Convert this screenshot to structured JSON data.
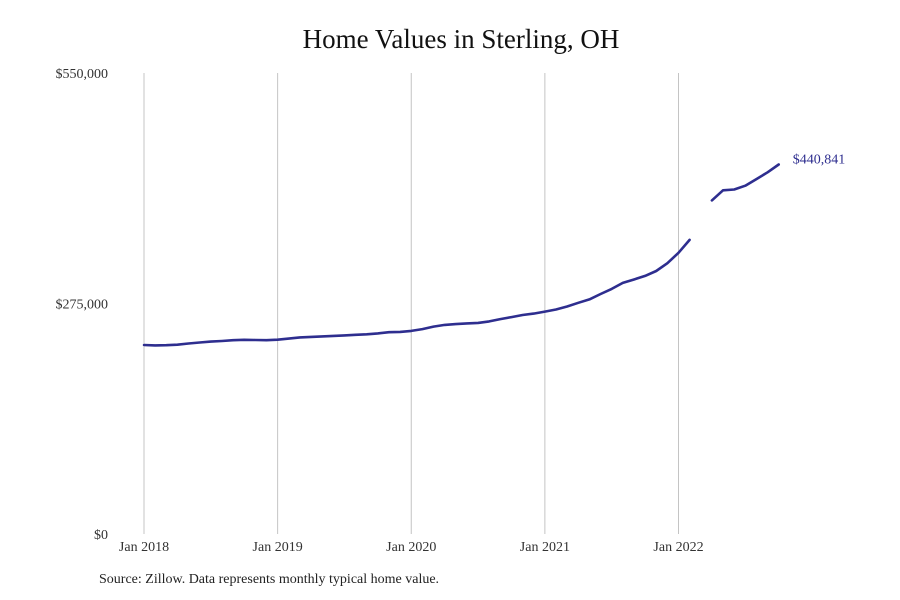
{
  "chart_data": {
    "type": "line",
    "title": "Home Values in Sterling, OH",
    "xlabel": "",
    "ylabel": "",
    "ylim": [
      0,
      550000
    ],
    "y_ticks": [
      "$0",
      "$275,000",
      "$550,000"
    ],
    "y_tick_values": [
      0,
      275000,
      550000
    ],
    "x_ticks": [
      "Jan 2018",
      "Jan 2019",
      "Jan 2020",
      "Jan 2021",
      "Jan 2022"
    ],
    "x_tick_values": [
      "2018-01",
      "2019-01",
      "2020-01",
      "2021-01",
      "2022-01"
    ],
    "xlim": [
      "2018-01",
      "2022-12"
    ],
    "grid": "vertical",
    "line_color": "#2e2e8f",
    "end_label": "$440,841",
    "series": [
      {
        "segments": [
          {
            "x": [
              "2018-01",
              "2018-02",
              "2018-03",
              "2018-04",
              "2018-05",
              "2018-06",
              "2018-07",
              "2018-08",
              "2018-09",
              "2018-10",
              "2018-11",
              "2018-12",
              "2019-01",
              "2019-02",
              "2019-03",
              "2019-04",
              "2019-05",
              "2019-06",
              "2019-07",
              "2019-08",
              "2019-09",
              "2019-10",
              "2019-11",
              "2019-12",
              "2020-01",
              "2020-02",
              "2020-03",
              "2020-04",
              "2020-05",
              "2020-06",
              "2020-07",
              "2020-08",
              "2020-09",
              "2020-10",
              "2020-11",
              "2020-12",
              "2021-01",
              "2021-02",
              "2021-03",
              "2021-04",
              "2021-05",
              "2021-06",
              "2021-07",
              "2021-08",
              "2021-09",
              "2021-10",
              "2021-11",
              "2021-12",
              "2022-01",
              "2022-02"
            ],
            "y": [
              225500,
              225000,
              225200,
              225800,
              227300,
              228500,
              229600,
              230300,
              231200,
              231700,
              231500,
              231200,
              231800,
              233100,
              234600,
              235100,
              235800,
              236400,
              236900,
              237600,
              238300,
              239300,
              240800,
              241100,
              242300,
              244400,
              247400,
              249500,
              250400,
              251300,
              251900,
              253700,
              256400,
              258800,
              261300,
              263000,
              265300,
              267900,
              271400,
              275800,
              279900,
              286300,
              292400,
              299600,
              303600,
              307900,
              313800,
              323100,
              335500,
              350900
            ]
          },
          {
            "x": [
              "2022-04",
              "2022-05",
              "2022-06",
              "2022-07",
              "2022-08",
              "2022-09",
              "2022-10"
            ],
            "y": [
              398000,
              410000,
              411000,
              415500,
              423400,
              431500,
              440841
            ]
          }
        ]
      }
    ]
  },
  "source_text": "Source: Zillow. Data represents monthly typical home value."
}
